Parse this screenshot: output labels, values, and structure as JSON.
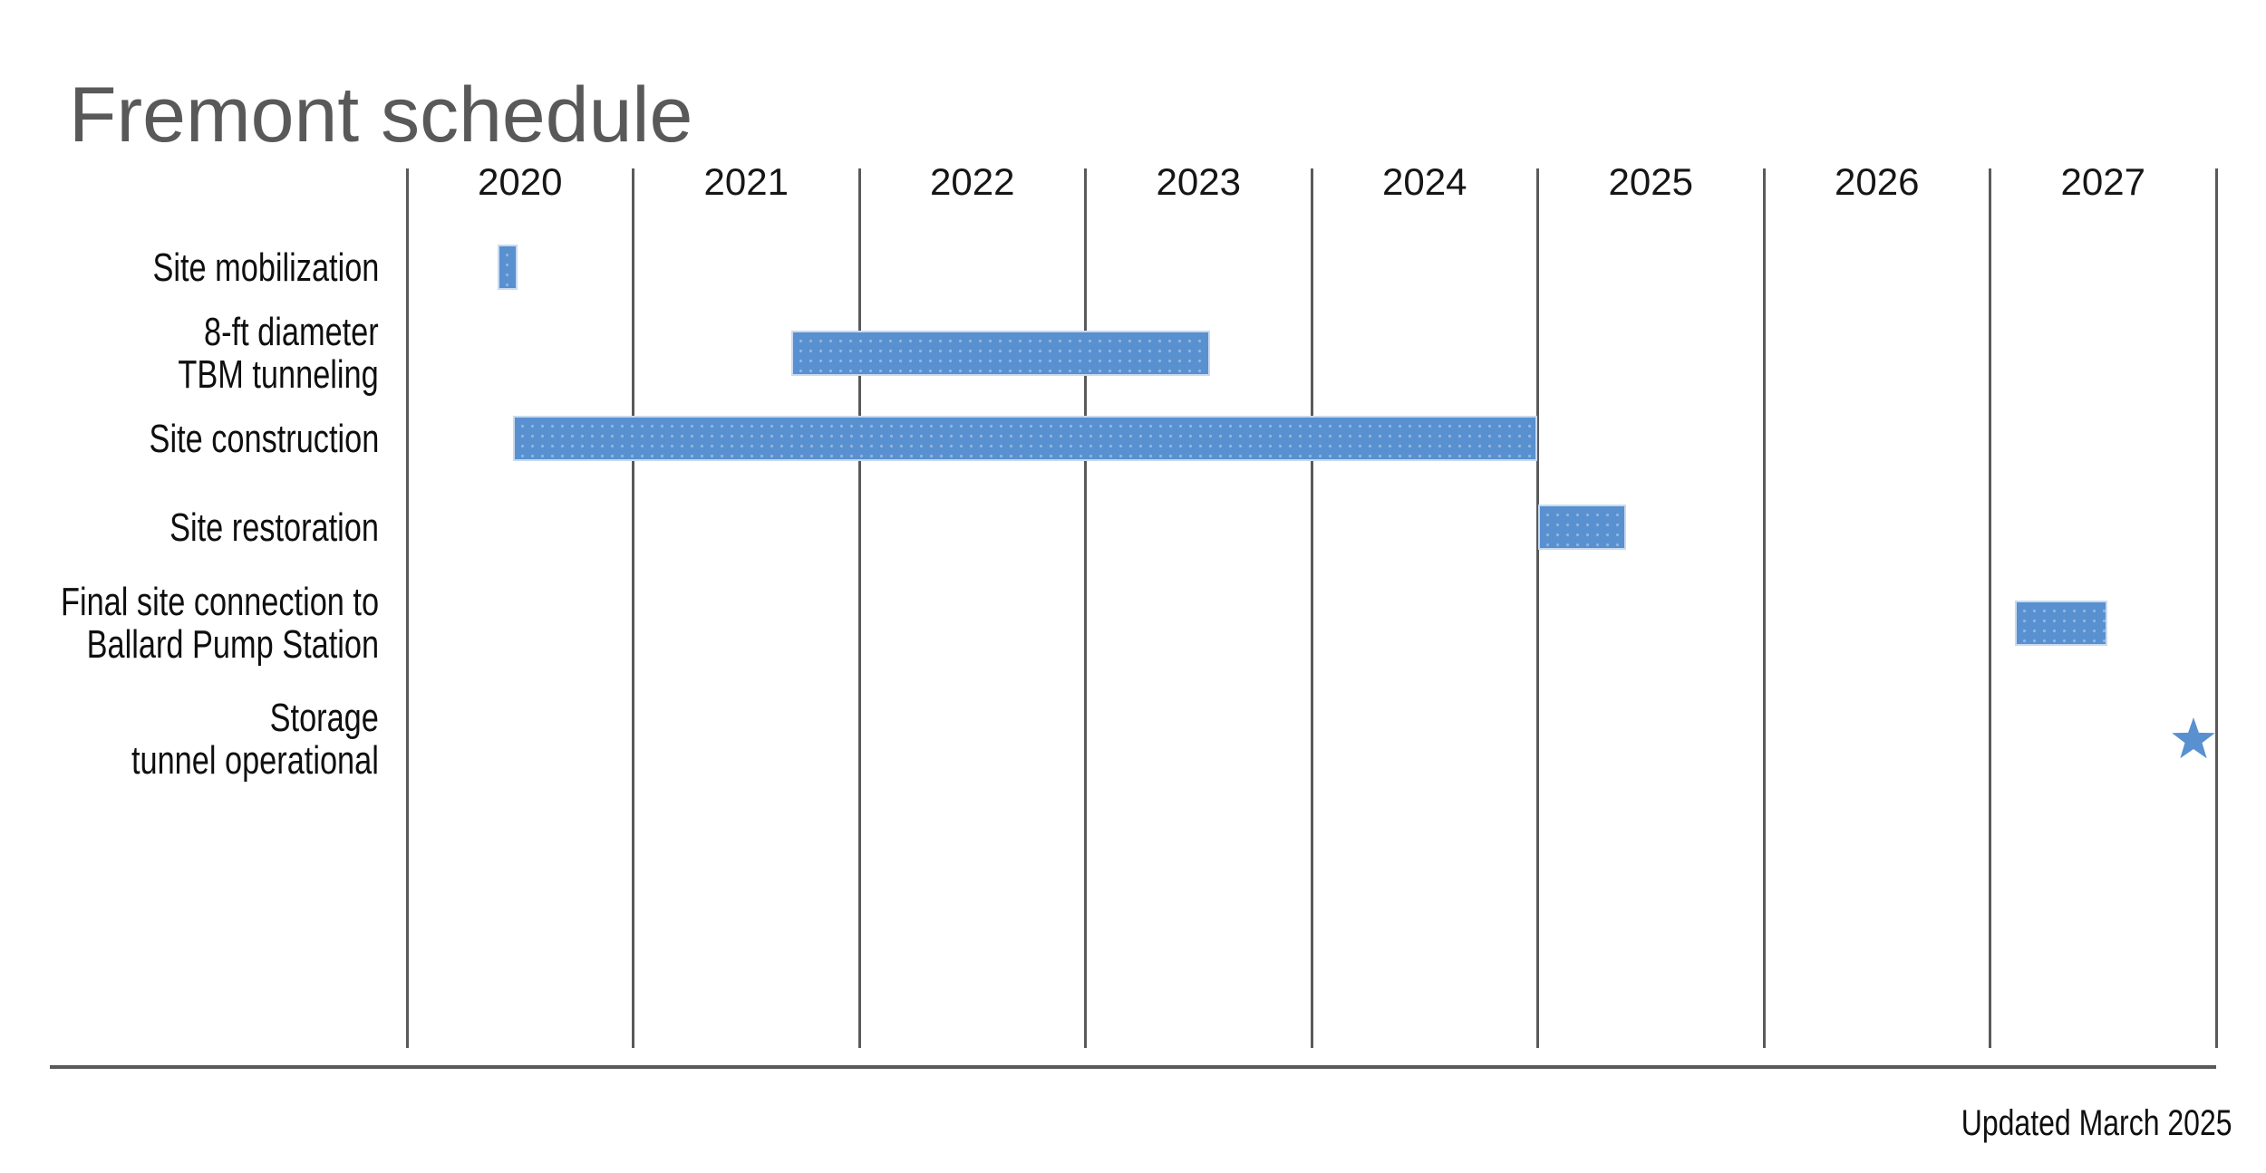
{
  "page": {
    "title": "Fremont schedule",
    "footer_note": "Updated March 2025"
  },
  "colors": {
    "bar_fill": "#5890d0",
    "bar_border": "#c9daef",
    "star_fill": "#5890d0",
    "grid_line": "#5a5a5a",
    "axis_line": "#595959",
    "title_text": "#595959",
    "label_text": "#0f0f0f"
  },
  "chart_data": {
    "type": "gantt",
    "title": "Fremont schedule",
    "x_axis": {
      "tick_labels": [
        "2020",
        "2021",
        "2022",
        "2023",
        "2024",
        "2025",
        "2026",
        "2027"
      ],
      "range_years": [
        2020,
        2028
      ],
      "gridlines": true
    },
    "tasks": [
      {
        "name": "site-mobilization",
        "label_lines": [
          "Site mobilization"
        ],
        "marker": "bar",
        "start": 2020.4,
        "end": 2020.49
      },
      {
        "name": "tbm-tunneling",
        "label_lines": [
          "8-ft diameter",
          "TBM tunneling"
        ],
        "marker": "bar",
        "start": 2021.7,
        "end": 2023.55
      },
      {
        "name": "site-construction",
        "label_lines": [
          "Site construction"
        ],
        "marker": "bar",
        "start": 2020.47,
        "end": 2025.0
      },
      {
        "name": "site-restoration",
        "label_lines": [
          "Site restoration"
        ],
        "marker": "bar",
        "start": 2025.0,
        "end": 2025.39
      },
      {
        "name": "final-site-connection",
        "label_lines": [
          "Final site connection to",
          "Ballard Pump Station"
        ],
        "marker": "bar",
        "start": 2027.11,
        "end": 2027.52
      },
      {
        "name": "storage-tunnel-operational",
        "label_lines": [
          "Storage",
          "tunnel operational"
        ],
        "marker": "star",
        "start": 2027.9,
        "end": 2027.9
      }
    ],
    "annotation": "Updated March 2025"
  }
}
